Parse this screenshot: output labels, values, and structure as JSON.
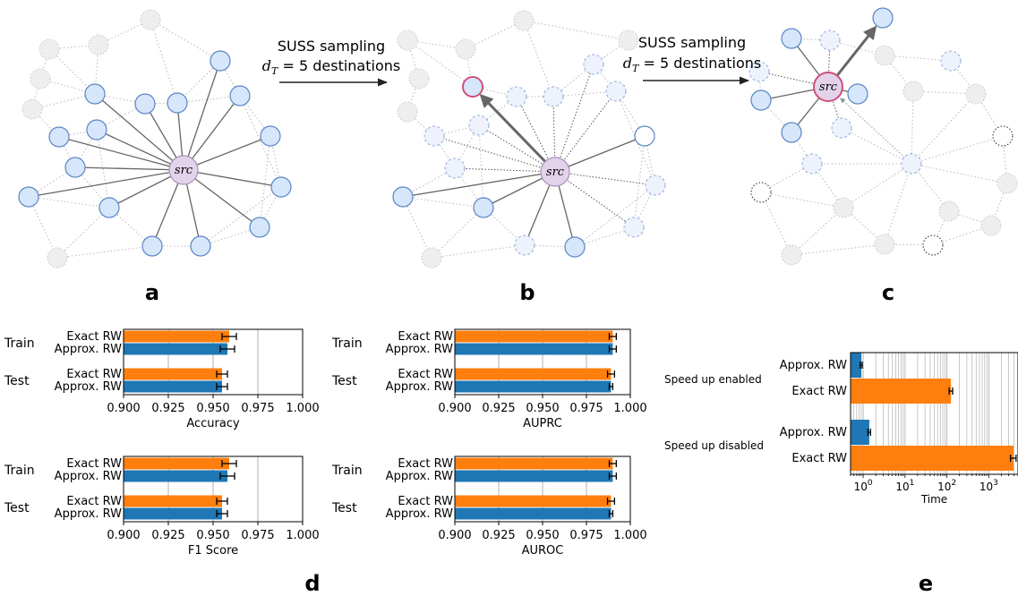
{
  "panels": {
    "a": "a",
    "b": "b",
    "c": "c",
    "d": "d",
    "e": "e"
  },
  "arrows": [
    {
      "line1": "SUSS sampling",
      "math": "d",
      "sub": "T",
      "eq": " = 5",
      "rest": " destinations"
    },
    {
      "line1": "SUSS sampling",
      "math": "d",
      "sub": "T",
      "eq": " = 5",
      "rest": " destinations"
    }
  ],
  "node_label": "src",
  "colors": {
    "orange": "#ff7f0e",
    "blue": "#1f77b4",
    "node_fill": "#d6e6fb",
    "node_stroke": "#5b86c4",
    "src_fill": "#e3d3ea",
    "src_stroke": "#a98fb8",
    "pink": "#d0507a",
    "grey_node": "#eeeeee"
  },
  "chart_data": [
    {
      "type": "bar",
      "orientation": "horizontal",
      "xlabel": "Accuracy",
      "xlim": [
        0.9,
        1.0
      ],
      "xticks": [
        "0.900",
        "0.925",
        "0.950",
        "0.975",
        "1.000"
      ],
      "groups": [
        {
          "name": "Train",
          "bars": [
            {
              "label": "Exact RW",
              "value": 0.959,
              "err": 0.004,
              "color": "orange"
            },
            {
              "label": "Approx. RW",
              "value": 0.958,
              "err": 0.004,
              "color": "blue"
            }
          ]
        },
        {
          "name": "Test",
          "bars": [
            {
              "label": "Exact RW",
              "value": 0.955,
              "err": 0.003,
              "color": "orange"
            },
            {
              "label": "Approx. RW",
              "value": 0.955,
              "err": 0.003,
              "color": "blue"
            }
          ]
        }
      ]
    },
    {
      "type": "bar",
      "orientation": "horizontal",
      "xlabel": "AUPRC",
      "xlim": [
        0.9,
        1.0
      ],
      "xticks": [
        "0.900",
        "0.925",
        "0.950",
        "0.975",
        "1.000"
      ],
      "groups": [
        {
          "name": "Train",
          "bars": [
            {
              "label": "Exact RW",
              "value": 0.99,
              "err": 0.002,
              "color": "orange"
            },
            {
              "label": "Approx. RW",
              "value": 0.99,
              "err": 0.002,
              "color": "blue"
            }
          ]
        },
        {
          "name": "Test",
          "bars": [
            {
              "label": "Exact RW",
              "value": 0.989,
              "err": 0.002,
              "color": "orange"
            },
            {
              "label": "Approx. RW",
              "value": 0.989,
              "err": 0.001,
              "color": "blue"
            }
          ]
        }
      ]
    },
    {
      "type": "bar",
      "orientation": "horizontal",
      "xlabel": "F1 Score",
      "xlim": [
        0.9,
        1.0
      ],
      "xticks": [
        "0.900",
        "0.925",
        "0.950",
        "0.975",
        "1.000"
      ],
      "groups": [
        {
          "name": "Train",
          "bars": [
            {
              "label": "Exact RW",
              "value": 0.959,
              "err": 0.004,
              "color": "orange"
            },
            {
              "label": "Approx. RW",
              "value": 0.958,
              "err": 0.004,
              "color": "blue"
            }
          ]
        },
        {
          "name": "Test",
          "bars": [
            {
              "label": "Exact RW",
              "value": 0.955,
              "err": 0.003,
              "color": "orange"
            },
            {
              "label": "Approx. RW",
              "value": 0.955,
              "err": 0.003,
              "color": "blue"
            }
          ]
        }
      ]
    },
    {
      "type": "bar",
      "orientation": "horizontal",
      "xlabel": "AUROC",
      "xlim": [
        0.9,
        1.0
      ],
      "xticks": [
        "0.900",
        "0.925",
        "0.950",
        "0.975",
        "1.000"
      ],
      "groups": [
        {
          "name": "Train",
          "bars": [
            {
              "label": "Exact RW",
              "value": 0.99,
              "err": 0.002,
              "color": "orange"
            },
            {
              "label": "Approx. RW",
              "value": 0.99,
              "err": 0.002,
              "color": "blue"
            }
          ]
        },
        {
          "name": "Test",
          "bars": [
            {
              "label": "Exact RW",
              "value": 0.989,
              "err": 0.002,
              "color": "orange"
            },
            {
              "label": "Approx. RW",
              "value": 0.989,
              "err": 0.001,
              "color": "blue"
            }
          ]
        }
      ]
    },
    {
      "type": "bar",
      "orientation": "horizontal",
      "xscale": "log",
      "xlabel": "Time",
      "xlim": [
        0.5,
        5000
      ],
      "xticks": [
        {
          "base": "10",
          "exp": "0"
        },
        {
          "base": "10",
          "exp": "1"
        },
        {
          "base": "10",
          "exp": "2"
        },
        {
          "base": "10",
          "exp": "3"
        }
      ],
      "groups": [
        {
          "name": "Speed up enabled",
          "bars": [
            {
              "label": "Approx. RW",
              "value": 0.9,
              "err": 0.05,
              "color": "blue"
            },
            {
              "label": "Exact RW",
              "value": 125,
              "err": 12,
              "color": "orange"
            }
          ]
        },
        {
          "name": "Speed up disabled",
          "bars": [
            {
              "label": "Approx. RW",
              "value": 1.4,
              "err": 0.1,
              "color": "blue"
            },
            {
              "label": "Exact RW",
              "value": 3900,
              "err": 600,
              "color": "orange"
            }
          ]
        }
      ]
    }
  ]
}
